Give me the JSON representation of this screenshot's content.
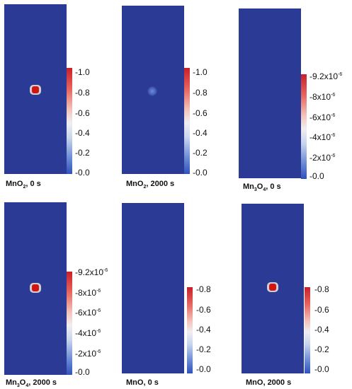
{
  "panels": [
    {
      "caption": {
        "formula": "MnO",
        "sub": "2",
        "rest": ", 0 s"
      },
      "ticks": [
        "1.0",
        "0.8",
        "0.6",
        "0.4",
        "0.2",
        "0.0"
      ],
      "hotspot": "red-hexagon"
    },
    {
      "caption": {
        "formula": "MnO",
        "sub": "2",
        "rest": ", 2000 s"
      },
      "ticks": [
        "1.0",
        "0.8",
        "0.6",
        "0.4",
        "0.2",
        "0.0"
      ],
      "hotspot": "faint-blue-blob"
    },
    {
      "caption": {
        "formula": "Mn",
        "sub": "3",
        "mid": "O",
        "sub2": "4",
        "rest": ", 0 s"
      },
      "ticks": [
        "9.2x10",
        "8x10",
        "6x10",
        "4x10",
        "2x10",
        "0.0"
      ],
      "tick_exponent": "-6",
      "hotspot": "none"
    },
    {
      "caption": {
        "formula": "Mn",
        "sub": "3",
        "mid": "O",
        "sub2": "4",
        "rest": ", 2000 s"
      },
      "ticks": [
        "9.2x10",
        "8x10",
        "6x10",
        "4x10",
        "2x10",
        "0.0"
      ],
      "tick_exponent": "-6",
      "hotspot": "red-hexagon"
    },
    {
      "caption": {
        "formula": "MnO",
        "rest": ", 0 s"
      },
      "ticks": [
        "0.8",
        "0.6",
        "0.4",
        "0.2",
        "0.0"
      ],
      "hotspot": "none"
    },
    {
      "caption": {
        "formula": "MnO",
        "rest": ", 2000 s"
      },
      "ticks": [
        "0.8",
        "0.6",
        "0.4",
        "0.2",
        "0.0"
      ],
      "hotspot": "red-hexagon"
    }
  ],
  "colors": {
    "domain": "#2b3a94",
    "hot": "#d11414",
    "halo": "#cfcfcf"
  }
}
